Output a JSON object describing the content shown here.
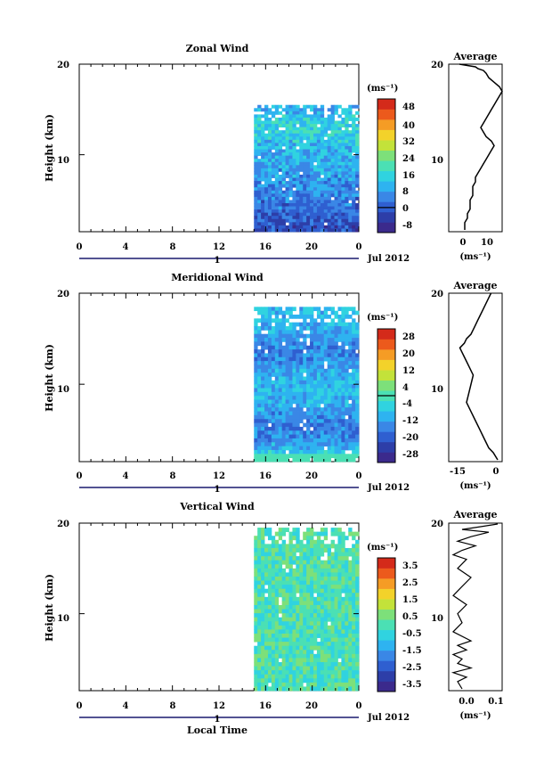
{
  "panels": [
    {
      "title": "Zonal Wind",
      "ylabel": "Height (km)",
      "xticks": [
        "0",
        "4",
        "8",
        "12",
        "16",
        "20",
        "0"
      ],
      "yticks": [
        "10",
        "20"
      ],
      "date_tick": "1",
      "date_label": "Jul 2012",
      "colorbar": {
        "unit": "(ms⁻¹)",
        "ticks": [
          "48",
          "40",
          "32",
          "24",
          "16",
          "8",
          "0",
          "-8"
        ],
        "zero_line_at": "0"
      },
      "avg": {
        "title": "Average",
        "xticks": [
          "0",
          "10"
        ],
        "yticks": [
          "10",
          "20"
        ],
        "unit": "(ms⁻¹)",
        "xlim": [
          -5,
          15
        ],
        "ylim": [
          1.5,
          20
        ]
      }
    },
    {
      "title": "Meridional Wind",
      "ylabel": "Height (km)",
      "xticks": [
        "0",
        "4",
        "8",
        "12",
        "16",
        "20",
        "0"
      ],
      "yticks": [
        "10",
        "20"
      ],
      "date_tick": "1",
      "date_label": "Jul 2012",
      "colorbar": {
        "unit": "(ms⁻¹)",
        "ticks": [
          "28",
          "20",
          "12",
          "4",
          "-4",
          "-12",
          "-20",
          "-28"
        ],
        "zero_line_at": "between 4 and -4"
      },
      "avg": {
        "title": "Average",
        "xticks": [
          "-15",
          "0"
        ],
        "yticks": [
          "10",
          "20"
        ],
        "unit": "(ms⁻¹)",
        "xlim": [
          -22,
          2
        ],
        "ylim": [
          1.5,
          20
        ]
      }
    },
    {
      "title": "Vertical Wind",
      "ylabel": "Height (km)",
      "xticks": [
        "0",
        "4",
        "8",
        "12",
        "16",
        "20",
        "0"
      ],
      "yticks": [
        "10",
        "20"
      ],
      "date_tick": "1",
      "date_label": "Jul 2012",
      "xlabel": "Local Time",
      "colorbar": {
        "unit": "(ms⁻¹)",
        "ticks": [
          "3.5",
          "2.5",
          "1.5",
          "0.5",
          "-0.5",
          "-1.5",
          "-2.5",
          "-3.5"
        ]
      },
      "avg": {
        "title": "Average",
        "xticks": [
          "0.0",
          "0.1"
        ],
        "yticks": [
          "10",
          "20"
        ],
        "unit": "(ms⁻¹)",
        "xlim": [
          -0.02,
          0.1
        ],
        "ylim": [
          1.5,
          20
        ]
      }
    }
  ],
  "colormap": [
    "#3b2a8c",
    "#2d3ea8",
    "#2f5fd0",
    "#3a87e6",
    "#2eb3f0",
    "#30d3e0",
    "#4be0b4",
    "#7de07a",
    "#c3e23a",
    "#f3d22a",
    "#f59c25",
    "#ec5a1c",
    "#d42a1a"
  ],
  "chart_data": [
    {
      "type": "heatmap",
      "title": "Zonal Wind",
      "ylabel": "Height (km)",
      "xlim_hours": [
        0,
        24
      ],
      "ylim_km": [
        1.5,
        20
      ],
      "data_window_hours": [
        15,
        24
      ],
      "data_top_km": 15.5,
      "zlim": [
        -12,
        52
      ],
      "unit": "ms-1",
      "profile_km": [
        2,
        3,
        4,
        5,
        6,
        7,
        8,
        9,
        10,
        11,
        12,
        13,
        14,
        15
      ],
      "profile_value": [
        -2,
        0,
        2,
        3,
        5,
        7,
        8,
        9,
        10,
        12,
        14,
        16,
        13,
        10
      ]
    },
    {
      "type": "line",
      "title": "Average",
      "series": [
        {
          "x": [
            1,
            1,
            2,
            2,
            3,
            3,
            3,
            4,
            4,
            4,
            5,
            5,
            6,
            7,
            8,
            9,
            10,
            11,
            12,
            11,
            9,
            8,
            7,
            8,
            9,
            10,
            11,
            12,
            13,
            14,
            15,
            14,
            12,
            10,
            9,
            8,
            6,
            5,
            3,
            1,
            -1
          ],
          "y": [
            1.7,
            2.5,
            3,
            3.5,
            4,
            4.5,
            5,
            5.5,
            6,
            6.5,
            7,
            7.5,
            8,
            8.5,
            9,
            9.5,
            10,
            10.5,
            11,
            11.5,
            12,
            12.5,
            13,
            13.5,
            14,
            14.5,
            15,
            15.5,
            16,
            16.5,
            17,
            17.5,
            18,
            18.5,
            19,
            19.3,
            19.5,
            19.7,
            19.8,
            19.9,
            20
          ]
        }
      ],
      "xlim": [
        -5,
        15
      ],
      "ylim": [
        1.5,
        20
      ]
    },
    {
      "type": "heatmap",
      "title": "Meridional Wind",
      "ylabel": "Height (km)",
      "xlim_hours": [
        0,
        24
      ],
      "ylim_km": [
        1.5,
        20
      ],
      "data_window_hours": [
        15,
        24
      ],
      "data_top_km": 18.5,
      "zlim": [
        -32,
        32
      ],
      "unit": "ms-1",
      "profile_km": [
        2,
        3,
        4,
        5,
        6,
        7,
        8,
        9,
        10,
        11,
        12,
        13,
        14,
        15,
        16,
        17
      ],
      "profile_value": [
        -4,
        -10,
        -14,
        -16,
        -14,
        -12,
        -10,
        -8,
        -9,
        -10,
        -12,
        -14,
        -16,
        -12,
        -10,
        -8
      ]
    },
    {
      "type": "line",
      "title": "Average",
      "series": [
        {
          "x": [
            0,
            -2,
            -4,
            -6,
            -8,
            -10,
            -12,
            -14,
            -13,
            -12,
            -11,
            -13,
            -15,
            -16,
            -17,
            -15,
            -14,
            -12,
            -11,
            -10,
            -9,
            -8,
            -7,
            -6,
            -5,
            -4,
            -3
          ],
          "y": [
            1.7,
            2.5,
            3,
            4,
            5,
            6,
            7,
            8,
            9,
            10,
            11,
            12,
            13,
            13.5,
            14,
            14.5,
            15,
            15.5,
            16,
            16.5,
            17,
            17.5,
            18,
            18.5,
            19,
            19.5,
            20
          ]
        }
      ],
      "xlim": [
        -22,
        2
      ],
      "ylim": [
        1.5,
        20
      ]
    },
    {
      "type": "heatmap",
      "title": "Vertical Wind",
      "ylabel": "Height (km)",
      "xlabel": "Local Time",
      "xlim_hours": [
        0,
        24
      ],
      "ylim_km": [
        1.5,
        20
      ],
      "data_window_hours": [
        15,
        24
      ],
      "data_top_km": 19.5,
      "zlim": [
        -4,
        4
      ],
      "unit": "ms-1"
    },
    {
      "type": "line",
      "title": "Average",
      "series": [
        {
          "x": [
            0.01,
            0.0,
            0.02,
            -0.01,
            0.03,
            0.0,
            0.01,
            -0.01,
            0.02,
            0.0,
            0.03,
            -0.01,
            0.01,
            0.0,
            0.02,
            -0.01,
            0.01,
            0.03,
            0.0,
            0.02,
            -0.01,
            0.01,
            0.04,
            0.0,
            0.03,
            0.07,
            0.01,
            0.05,
            0.09
          ],
          "y": [
            1.7,
            2.5,
            3,
            3.5,
            4,
            4.5,
            5,
            5.5,
            6,
            6.5,
            7,
            8,
            9,
            10,
            11,
            12,
            13,
            14,
            15,
            16,
            16.5,
            17,
            17.5,
            18,
            18.5,
            19,
            19.3,
            19.6,
            19.9
          ]
        }
      ],
      "xlim": [
        -0.02,
        0.1
      ],
      "ylim": [
        1.5,
        20
      ]
    }
  ]
}
